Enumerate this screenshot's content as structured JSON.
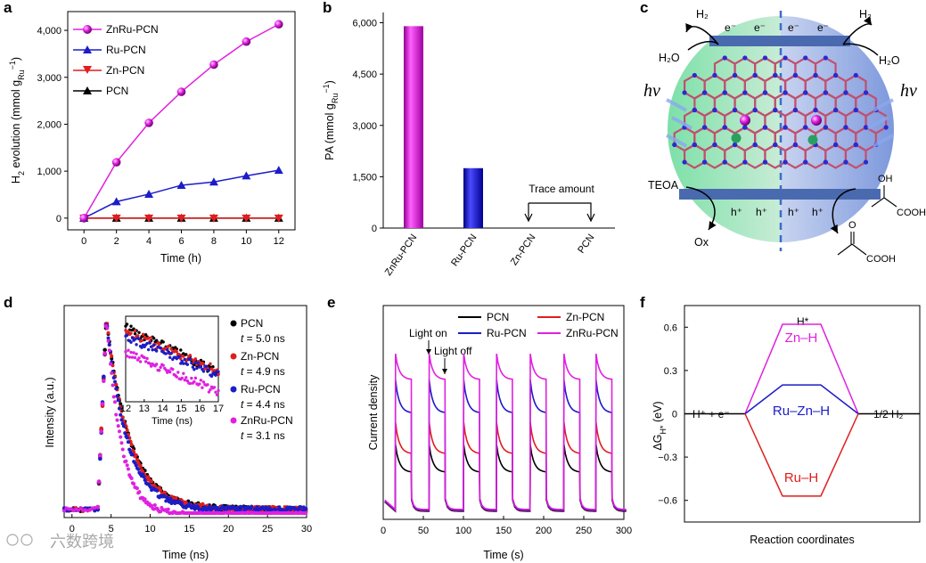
{
  "panels": {
    "a": "a",
    "b": "b",
    "c": "c",
    "d": "d",
    "e": "e",
    "f": "f"
  },
  "watermark": "六数跨境",
  "colors": {
    "znru": "#e020e0",
    "ru": "#1c1cc8",
    "zn": "#e01e1e",
    "pcn": "#000000"
  },
  "chart_data": [
    {
      "id": "a",
      "type": "line",
      "xlabel": "Time (h)",
      "ylabel": "H2 evolution (mmol gRu−1)",
      "ylabel_parts": {
        "a": "H",
        "sub1": "2",
        "b": " evolution (mmol g",
        "sub2": "Ru",
        "sup": "−1",
        "c": ")"
      },
      "xlim": [
        -1,
        13
      ],
      "ylim": [
        -250,
        4400
      ],
      "xticks": [
        "0",
        "2",
        "4",
        "6",
        "8",
        "10",
        "12"
      ],
      "yticks": [
        "0",
        "1,000",
        "2,000",
        "3,000",
        "4,000"
      ],
      "x": [
        0,
        2,
        4,
        6,
        8,
        10,
        12
      ],
      "series": [
        {
          "name": "ZnRu-PCN",
          "color": "#e020e0",
          "marker": "sphere",
          "values": [
            0,
            1190,
            2030,
            2690,
            3270,
            3760,
            4130
          ]
        },
        {
          "name": "Ru-PCN",
          "color": "#1c1cc8",
          "marker": "triangle-up",
          "values": [
            0,
            350,
            510,
            700,
            770,
            900,
            1020
          ]
        },
        {
          "name": "Zn-PCN",
          "color": "#e01e1e",
          "marker": "triangle-down",
          "values": [
            0,
            0,
            0,
            0,
            0,
            0,
            0
          ]
        },
        {
          "name": "PCN",
          "color": "#000000",
          "marker": "triangle-up",
          "values": [
            0,
            0,
            0,
            0,
            0,
            0,
            0
          ]
        }
      ]
    },
    {
      "id": "b",
      "type": "bar",
      "ylabel": "PA (mmol gRu−1)",
      "ylabel_parts": {
        "a": "PA (mmol g",
        "sub": "Ru",
        "sup": "−1",
        "b": ")"
      },
      "ylim": [
        0,
        6300
      ],
      "yticks": [
        "0",
        "1,500",
        "3,000",
        "4,500",
        "6,000"
      ],
      "categories": [
        "ZnRu-PCN",
        "Ru-PCN",
        "Zn-PCN",
        "PCN"
      ],
      "values": [
        5900,
        1750,
        0,
        0
      ],
      "colors": [
        "#e020e0",
        "#1c1cc8",
        "#e01e1e",
        "#000000"
      ],
      "annotation": "Trace amount"
    },
    {
      "id": "d",
      "type": "scatter",
      "xlabel": "Time (ns)",
      "ylabel": "Intensity (a.u.)",
      "xlim": [
        -1,
        30
      ],
      "xticks": [
        "0",
        "5",
        "10",
        "15",
        "20",
        "25",
        "30"
      ],
      "series": [
        {
          "name": "PCN",
          "color": "#000000",
          "tau": "5.0 ns",
          "decay": 5.0
        },
        {
          "name": "Zn-PCN",
          "color": "#e01e1e",
          "tau": "4.9 ns",
          "decay": 4.9
        },
        {
          "name": "Ru-PCN",
          "color": "#1c1cc8",
          "tau": "4.4 ns",
          "decay": 4.4
        },
        {
          "name": "ZnRu-PCN",
          "color": "#e020e0",
          "tau": "3.1 ns",
          "decay": 3.1
        }
      ],
      "tau_prefix": "t = ",
      "inset": {
        "xlabel": "Time (ns)",
        "xticks": [
          "12",
          "13",
          "14",
          "15",
          "16",
          "17"
        ]
      }
    },
    {
      "id": "e",
      "type": "line",
      "xlabel": "Time (s)",
      "ylabel": "Current density",
      "xlim": [
        0,
        300
      ],
      "xticks": [
        "0",
        "50",
        "100",
        "150",
        "200",
        "250",
        "300"
      ],
      "light_on_label": "Light on",
      "light_off_label": "Light off",
      "on_times": [
        15,
        57,
        100,
        141,
        183,
        225,
        265
      ],
      "on_duration": 20,
      "series": [
        {
          "name": "PCN",
          "color": "#000000",
          "peak": 0.37,
          "plateau": 0.22
        },
        {
          "name": "Zn-PCN",
          "color": "#e01e1e",
          "peak": 0.49,
          "plateau": 0.32
        },
        {
          "name": "Ru-PCN",
          "color": "#1c1cc8",
          "peak": 0.72,
          "plateau": 0.54
        },
        {
          "name": "ZnRu-PCN",
          "color": "#e020e0",
          "peak": 0.86,
          "plateau": 0.72
        }
      ]
    },
    {
      "id": "f",
      "type": "line",
      "xlabel": "Reaction coordinates",
      "ylabel": "ΔGH* (eV)",
      "ylabel_parts": {
        "a": "ΔG",
        "sub": "H*",
        "b": " (eV)"
      },
      "ylim": [
        -0.75,
        0.75
      ],
      "yticks": [
        "0.6",
        "0.3",
        "0",
        "−0.3",
        "−0.6"
      ],
      "ytick_values": [
        0.6,
        0.3,
        0,
        -0.3,
        -0.6
      ],
      "initial_label": "H⁺ + e⁻",
      "final_label": "1/2 H₂",
      "top_label": "H*",
      "series": [
        {
          "name": "Zn–H",
          "color": "#e020e0",
          "value": 0.62
        },
        {
          "name": "Ru–Zn–H",
          "color": "#1c1cc8",
          "value": 0.2
        },
        {
          "name": "Ru–H",
          "color": "#e01e1e",
          "value": -0.57
        }
      ]
    }
  ],
  "schematic": {
    "h2_left": "H₂",
    "h2_right": "H₂",
    "h2o_left": "H₂O",
    "h2o_right": "H₂O",
    "hv_left": "hν",
    "hv_right": "hν",
    "electrons": [
      "e⁻",
      "e⁻",
      "e⁻",
      "e⁻"
    ],
    "holes": [
      "h⁺",
      "h⁺",
      "h⁺",
      "h⁺"
    ],
    "teoa": "TEOA",
    "ox": "Ox",
    "oh": "OH",
    "cooh_top": "COOH",
    "o": "O",
    "cooh_bottom": "COOH"
  }
}
